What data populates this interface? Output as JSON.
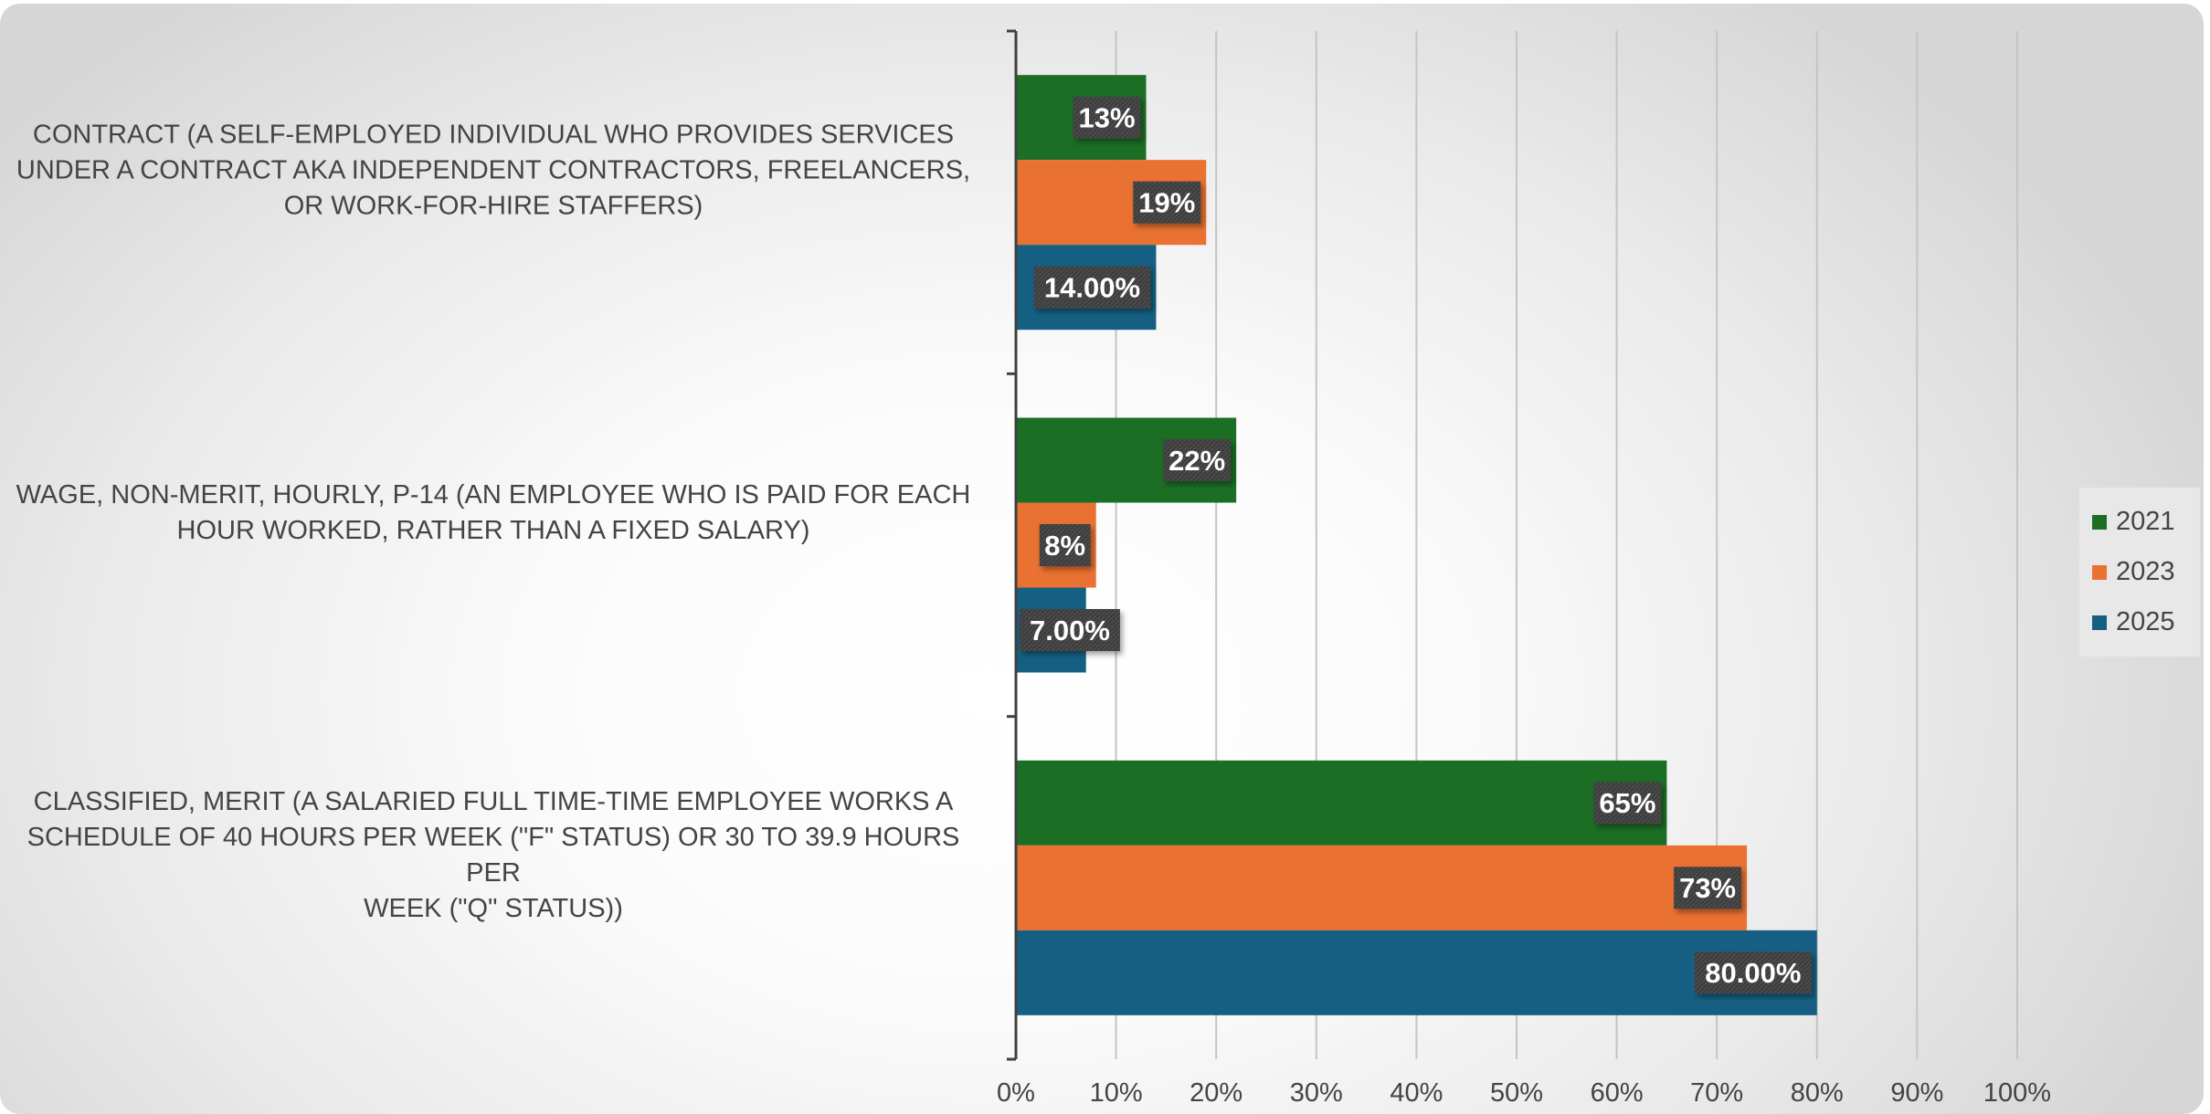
{
  "chart_data": {
    "type": "bar",
    "orientation": "horizontal",
    "categories": [
      "CONTRACT (A SELF-EMPLOYED INDIVIDUAL WHO PROVIDES SERVICES UNDER A CONTRACT AKA INDEPENDENT CONTRACTORS, FREELANCERS, OR WORK-FOR-HIRE STAFFERS)",
      "WAGE, NON-MERIT, HOURLY, P-14 (AN EMPLOYEE WHO IS PAID FOR EACH HOUR WORKED, RATHER THAN A FIXED SALARY)",
      "CLASSIFIED, MERIT (A SALARIED FULL TIME-TIME EMPLOYEE WORKS A SCHEDULE OF 40 HOURS PER WEEK (\"F\" STATUS) OR 30 TO 39.9 HOURS PER WEEK (\"Q\" STATUS))"
    ],
    "category_lines": [
      [
        "CONTRACT (A SELF-EMPLOYED INDIVIDUAL WHO PROVIDES SERVICES",
        "UNDER A CONTRACT AKA INDEPENDENT CONTRACTORS, FREELANCERS,",
        "OR WORK-FOR-HIRE STAFFERS)"
      ],
      [
        "WAGE, NON-MERIT, HOURLY, P-14 (AN EMPLOYEE WHO IS PAID FOR EACH",
        "HOUR WORKED, RATHER THAN A FIXED SALARY)"
      ],
      [
        "CLASSIFIED, MERIT (A SALARIED FULL TIME-TIME EMPLOYEE WORKS A",
        "SCHEDULE OF 40 HOURS PER WEEK (\"F\" STATUS) OR 30 TO 39.9 HOURS PER",
        "WEEK (\"Q\" STATUS))"
      ]
    ],
    "series": [
      {
        "name": "2021",
        "color": "#1b6e24",
        "values": [
          13,
          22,
          65
        ],
        "labels": [
          "13%",
          "22%",
          "65%"
        ]
      },
      {
        "name": "2023",
        "color": "#e97132",
        "values": [
          19,
          8,
          73
        ],
        "labels": [
          "19%",
          "8%",
          "73%"
        ]
      },
      {
        "name": "2025",
        "color": "#156082",
        "values": [
          14,
          7,
          80
        ],
        "labels": [
          "14.00%",
          "7.00%",
          "80.00%"
        ]
      }
    ],
    "xlim": [
      0,
      100
    ],
    "x_ticks": [
      0,
      10,
      20,
      30,
      40,
      50,
      60,
      70,
      80,
      90,
      100
    ],
    "x_tick_labels": [
      "0%",
      "10%",
      "20%",
      "30%",
      "40%",
      "50%",
      "60%",
      "70%",
      "80%",
      "90%",
      "100%"
    ],
    "grid": true,
    "legend": "right",
    "title": "",
    "xlabel": "",
    "ylabel": ""
  }
}
